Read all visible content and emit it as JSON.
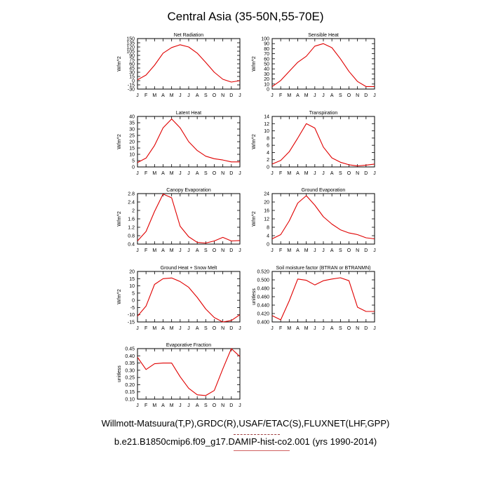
{
  "title": "Central Asia (35-50N,55-70E)",
  "captions": [
    "Willmott-Matsuura(T,P),GRDC(R),USAF/ETAC(S),FLUXNET(LHF,GPP)",
    "b.e21.B1850cmip6.f09_g17.DAMIP-hist-co2.001 (yrs 1990-2014)"
  ],
  "line_color": "#e00000",
  "chart_data": [
    {
      "type": "line",
      "title": "Net Radiation",
      "ylabel": "W/m^2",
      "categories": [
        "J",
        "F",
        "M",
        "A",
        "M",
        "J",
        "J",
        "A",
        "S",
        "O",
        "N",
        "D",
        "J"
      ],
      "ylim": [
        -30,
        150
      ],
      "yticks": [
        -30,
        -15,
        0,
        15,
        30,
        45,
        60,
        75,
        90,
        105,
        120,
        135,
        150
      ],
      "values": [
        3,
        20,
        55,
        98,
        118,
        128,
        120,
        98,
        65,
        30,
        5,
        -5,
        0
      ]
    },
    {
      "type": "line",
      "title": "Sensible Heat",
      "ylabel": "W/m^2",
      "categories": [
        "J",
        "F",
        "M",
        "A",
        "M",
        "J",
        "J",
        "A",
        "S",
        "O",
        "N",
        "D",
        "J"
      ],
      "ylim": [
        0,
        100
      ],
      "yticks": [
        0,
        10,
        20,
        30,
        40,
        50,
        60,
        70,
        80,
        90,
        100
      ],
      "values": [
        5,
        17,
        35,
        53,
        65,
        85,
        90,
        82,
        60,
        35,
        15,
        5,
        5
      ]
    },
    {
      "type": "line",
      "title": "Latent Heat",
      "ylabel": "W/m^2",
      "categories": [
        "J",
        "F",
        "M",
        "A",
        "M",
        "J",
        "J",
        "A",
        "S",
        "O",
        "N",
        "D",
        "J"
      ],
      "ylim": [
        0,
        40
      ],
      "yticks": [
        0,
        5,
        10,
        15,
        20,
        25,
        30,
        35,
        40
      ],
      "values": [
        3.5,
        7,
        17,
        31,
        38,
        31,
        20,
        13,
        8.5,
        6.5,
        5.5,
        4,
        4
      ]
    },
    {
      "type": "line",
      "title": "Transpiration",
      "ylabel": "W/m^2",
      "categories": [
        "J",
        "F",
        "M",
        "A",
        "M",
        "J",
        "J",
        "A",
        "S",
        "O",
        "N",
        "D",
        "J"
      ],
      "ylim": [
        0,
        14
      ],
      "yticks": [
        0,
        2,
        4,
        6,
        8,
        10,
        12,
        14
      ],
      "values": [
        0.8,
        1.8,
        4.2,
        8,
        12,
        10.8,
        5.5,
        2.5,
        1.3,
        0.6,
        0.3,
        0.5,
        0.8
      ]
    },
    {
      "type": "line",
      "title": "Canopy Evaporation",
      "ylabel": "W/m^2",
      "categories": [
        "J",
        "F",
        "M",
        "A",
        "M",
        "J",
        "J",
        "A",
        "S",
        "O",
        "N",
        "D",
        "J"
      ],
      "ylim": [
        0.4,
        2.8
      ],
      "yticks": [
        0.4,
        0.8,
        1.2,
        1.6,
        2.0,
        2.4,
        2.8
      ],
      "values": [
        0.55,
        1.0,
        1.95,
        2.78,
        2.6,
        1.25,
        0.75,
        0.48,
        0.45,
        0.55,
        0.72,
        0.55,
        0.57
      ]
    },
    {
      "type": "line",
      "title": "Ground Evaporation",
      "ylabel": "W/m^2",
      "categories": [
        "J",
        "F",
        "M",
        "A",
        "M",
        "J",
        "J",
        "A",
        "S",
        "O",
        "N",
        "D",
        "J"
      ],
      "ylim": [
        0,
        24
      ],
      "yticks": [
        0,
        4,
        8,
        12,
        16,
        20,
        24
      ],
      "values": [
        2.5,
        4.5,
        11,
        19.5,
        23,
        18.5,
        13,
        9.5,
        6.8,
        5.3,
        4.5,
        3,
        2.5
      ]
    },
    {
      "type": "line",
      "title": "Ground Heat + Snow Melt",
      "ylabel": "W/m^2",
      "categories": [
        "J",
        "F",
        "M",
        "A",
        "M",
        "J",
        "J",
        "A",
        "S",
        "O",
        "N",
        "D",
        "J"
      ],
      "ylim": [
        -15,
        20
      ],
      "yticks": [
        -15,
        -10,
        -5,
        0,
        5,
        10,
        15,
        20
      ],
      "values": [
        -11,
        -4,
        11,
        15,
        15.5,
        13,
        9,
        2,
        -6,
        -12,
        -15,
        -14,
        -10
      ]
    },
    {
      "type": "line",
      "title": "Soil moisture factor (BTRAN or BTRANMN)",
      "ylabel": "unitless",
      "categories": [
        "J",
        "F",
        "M",
        "A",
        "M",
        "J",
        "J",
        "A",
        "S",
        "O",
        "N",
        "D",
        "J"
      ],
      "ylim": [
        0.4,
        0.52
      ],
      "yticks": [
        "0.400",
        "0.420",
        "0.440",
        "0.460",
        "0.480",
        "0.500",
        "0.520"
      ],
      "values": [
        0.415,
        0.405,
        0.45,
        0.502,
        0.499,
        0.488,
        0.498,
        0.502,
        0.505,
        0.498,
        0.435,
        0.425,
        0.425
      ]
    },
    {
      "type": "line",
      "title": "Evaporative Fraction",
      "ylabel": "unitless",
      "categories": [
        "J",
        "F",
        "M",
        "A",
        "M",
        "J",
        "J",
        "A",
        "S",
        "O",
        "N",
        "D",
        "J"
      ],
      "ylim": [
        0.1,
        0.45
      ],
      "yticks": [
        "0.10",
        "0.15",
        "0.20",
        "0.25",
        "0.30",
        "0.35",
        "0.40",
        "0.45"
      ],
      "values": [
        0.39,
        0.305,
        0.345,
        0.35,
        0.35,
        0.255,
        0.175,
        0.13,
        0.125,
        0.16,
        0.31,
        0.45,
        0.395
      ]
    }
  ]
}
